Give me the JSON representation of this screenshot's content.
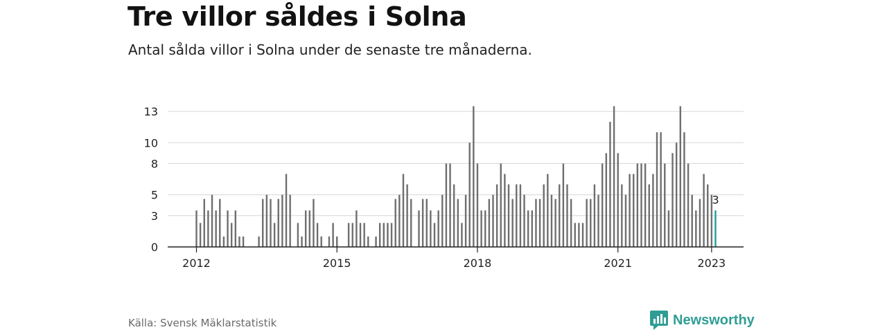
{
  "title": "Tre villor såldes i Solna",
  "subtitle": "Antal sålda villor i Solna under de senaste tre månaderna.",
  "source": "Källa: Svensk Mäklarstatistik",
  "brand": "Newsworthy",
  "colors": {
    "bar": "#6e6e6e",
    "highlight": "#1aa09a",
    "brand": "#2f9d95"
  },
  "chart_data": {
    "type": "bar",
    "title": "Tre villor såldes i Solna",
    "subtitle": "Antal sålda villor i Solna under de senaste tre månaderna.",
    "xlabel": "",
    "ylabel": "",
    "ylim": [
      0,
      14
    ],
    "yticks": [
      0,
      3,
      5,
      8,
      10,
      13
    ],
    "xtick_labels": [
      "2012",
      "2015",
      "2018",
      "2021",
      "2023"
    ],
    "x_start": "2012-01",
    "x_end": "2023-01",
    "grid": true,
    "annotation": {
      "label": "3",
      "x": "2023-01"
    },
    "series": [
      {
        "values": [
          3.5,
          2.3,
          4.6,
          3.5,
          5,
          3.5,
          4.6,
          1,
          3.5,
          2.3,
          3.5,
          1,
          1,
          0,
          0,
          0,
          1,
          4.6,
          5,
          4.6,
          2.3,
          4.6,
          5,
          7,
          5,
          0,
          2.3,
          1,
          3.5,
          3.5,
          4.6,
          2.3,
          1,
          0,
          1,
          2.3,
          1,
          0,
          0,
          2.3,
          2.3,
          3.5,
          2.3,
          2.3,
          1,
          0,
          1,
          2.3,
          2.3,
          2.3,
          2.3,
          4.6,
          5,
          7,
          6,
          4.6,
          0,
          3.5,
          4.6,
          4.6,
          3.5,
          2.3,
          3.5,
          5,
          8,
          8,
          6,
          4.6,
          2.3,
          5,
          10,
          13.5,
          8,
          3.5,
          3.5,
          4.6,
          5,
          6,
          8,
          7,
          6,
          4.6,
          6,
          6,
          5,
          3.5,
          3.5,
          4.6,
          4.6,
          6,
          7,
          5,
          4.6,
          6,
          8,
          6,
          4.6,
          2.3,
          2.3,
          2.3,
          4.6,
          4.6,
          6,
          5,
          8,
          9,
          12,
          13.5,
          9,
          6,
          5,
          7,
          7,
          8,
          8,
          8,
          6,
          7,
          11,
          11,
          8,
          3.5,
          9,
          10,
          13.5,
          11,
          8,
          5,
          3.5,
          4.6,
          7,
          6,
          5,
          3.5
        ]
      }
    ]
  }
}
